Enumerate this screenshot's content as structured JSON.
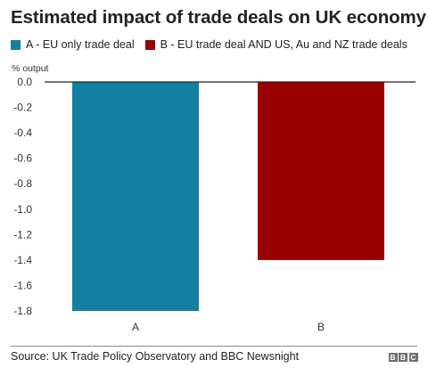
{
  "chart_data": {
    "type": "bar",
    "title": "Estimated impact of trade deals on UK economy",
    "ylabel": "% output",
    "xlabel": "",
    "categories": [
      "A",
      "B"
    ],
    "values": [
      -1.8,
      -1.4
    ],
    "colors": [
      "#1380a1",
      "#990000"
    ],
    "legend": [
      {
        "label": "A - EU only trade deal",
        "color": "#1380a1"
      },
      {
        "label": "B - EU trade deal AND US, Au and NZ trade deals",
        "color": "#990000"
      }
    ],
    "legend_position": "top-left",
    "ylim": [
      -1.8,
      0
    ],
    "yticks": [
      0.0,
      -0.2,
      -0.4,
      -0.6,
      -0.8,
      -1.0,
      -1.2,
      -1.4,
      -1.6,
      -1.8
    ],
    "ytick_labels": [
      "0.0",
      "-0.2",
      "-0.4",
      "-0.6",
      "-0.8",
      "-1.0",
      "-1.2",
      "-1.4",
      "-1.6",
      "-1.8"
    ],
    "grid": false
  },
  "footer": {
    "source": "Source: UK Trade Policy Observatory and BBC Newsnight",
    "logo_letters": [
      "B",
      "B",
      "C"
    ]
  }
}
